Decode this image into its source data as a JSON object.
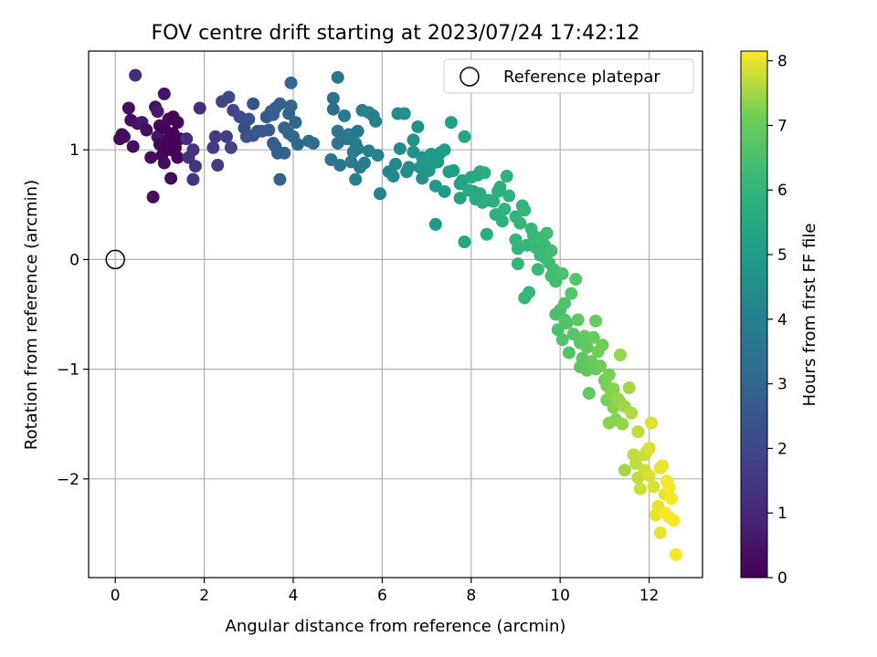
{
  "chart_data": {
    "type": "scatter",
    "title": "FOV centre drift starting at 2023/07/24 17:42:12",
    "xlabel": "Angular distance from reference (arcmin)",
    "ylabel": "Rotation from reference (arcmin)",
    "xlim": [
      -0.6,
      13.2
    ],
    "ylim": [
      -2.9,
      1.9
    ],
    "xticks": [
      0,
      2,
      4,
      6,
      8,
      10,
      12
    ],
    "yticks": [
      -2,
      -1,
      0,
      1
    ],
    "xtick_labels": [
      "0",
      "2",
      "4",
      "6",
      "8",
      "10",
      "12"
    ],
    "ytick_labels": [
      "−2",
      "−1",
      "0",
      "1"
    ],
    "grid": true,
    "legend": {
      "position": "top-right",
      "entries": [
        "Reference platepar"
      ]
    },
    "reference_point": {
      "x": 0,
      "y": 0
    },
    "colorbar": {
      "label": "Hours from first FF file",
      "range": [
        0,
        8.15
      ],
      "ticks": [
        0,
        1,
        2,
        3,
        4,
        5,
        6,
        7,
        8
      ],
      "colormap": "viridis"
    },
    "points": [
      [
        0.1,
        1.1,
        0.15
      ],
      [
        0.15,
        1.14,
        0.2
      ],
      [
        0.2,
        1.12,
        0.25
      ],
      [
        0.3,
        1.38,
        0.4
      ],
      [
        0.35,
        1.27,
        0.3
      ],
      [
        0.4,
        1.03,
        0.35
      ],
      [
        0.45,
        1.68,
        1.1
      ],
      [
        0.5,
        1.24,
        0.5
      ],
      [
        0.6,
        1.25,
        0.6
      ],
      [
        0.7,
        1.18,
        0.35
      ],
      [
        0.8,
        0.93,
        0.3
      ],
      [
        0.85,
        0.57,
        0.3
      ],
      [
        0.9,
        1.39,
        0.4
      ],
      [
        0.95,
        1.35,
        0.7
      ],
      [
        0.95,
        1.12,
        0.6
      ],
      [
        1.0,
        1.22,
        0.2
      ],
      [
        1.0,
        1.05,
        0.15
      ],
      [
        1.05,
        0.95,
        0.2
      ],
      [
        1.1,
        1.51,
        0.5
      ],
      [
        1.1,
        1.2,
        0.1
      ],
      [
        1.1,
        0.88,
        0.3
      ],
      [
        1.15,
        1.03,
        0.05
      ],
      [
        1.2,
        1.28,
        0.15
      ],
      [
        1.2,
        1.1,
        0.1
      ],
      [
        1.25,
        1.0,
        0.1
      ],
      [
        1.25,
        0.74,
        0.25
      ],
      [
        1.3,
        1.3,
        0.05
      ],
      [
        1.3,
        1.15,
        0.1
      ],
      [
        1.35,
        1.02,
        0.05
      ],
      [
        1.4,
        0.93,
        0.05
      ],
      [
        1.4,
        1.25,
        0.05
      ],
      [
        1.45,
        1.1,
        0.1
      ],
      [
        1.6,
        1.1,
        1.2
      ],
      [
        1.65,
        0.93,
        1.3
      ],
      [
        1.75,
        0.73,
        1.4
      ],
      [
        1.75,
        1.0,
        1.3
      ],
      [
        1.8,
        0.85,
        1.4
      ],
      [
        1.9,
        1.38,
        1.2
      ],
      [
        2.2,
        1.02,
        1.7
      ],
      [
        2.25,
        1.12,
        1.6
      ],
      [
        2.3,
        0.86,
        1.7
      ],
      [
        2.4,
        1.44,
        1.9
      ],
      [
        2.5,
        1.12,
        1.8
      ],
      [
        2.55,
        1.48,
        2.0
      ],
      [
        2.6,
        1.02,
        1.9
      ],
      [
        2.65,
        1.36,
        2.0
      ],
      [
        2.8,
        1.3,
        2.1
      ],
      [
        2.9,
        1.2,
        2.2
      ],
      [
        2.95,
        1.12,
        2.3
      ],
      [
        3.0,
        1.28,
        2.3
      ],
      [
        3.1,
        1.13,
        2.4
      ],
      [
        3.1,
        1.42,
        2.4
      ],
      [
        3.2,
        1.17,
        2.5
      ],
      [
        3.3,
        1.17,
        2.5
      ],
      [
        3.4,
        1.3,
        2.6
      ],
      [
        3.45,
        1.18,
        2.6
      ],
      [
        3.5,
        1.35,
        2.7
      ],
      [
        3.55,
        1.06,
        2.7
      ],
      [
        3.55,
        1.32,
        2.7
      ],
      [
        3.6,
        1.03,
        2.7
      ],
      [
        3.6,
        1.38,
        2.8
      ],
      [
        3.65,
        0.97,
        2.8
      ],
      [
        3.7,
        0.73,
        2.9
      ],
      [
        3.7,
        1.42,
        2.9
      ],
      [
        3.8,
        0.97,
        2.9
      ],
      [
        3.8,
        1.2,
        2.9
      ],
      [
        3.9,
        1.33,
        3.0
      ],
      [
        3.9,
        1.15,
        3.0
      ],
      [
        3.95,
        1.61,
        3.1
      ],
      [
        3.95,
        1.4,
        3.0
      ],
      [
        4.0,
        1.12,
        3.1
      ],
      [
        4.05,
        1.25,
        3.1
      ],
      [
        4.1,
        1.05,
        3.1
      ],
      [
        4.35,
        1.08,
        3.2
      ],
      [
        4.45,
        1.06,
        3.2
      ],
      [
        4.85,
        0.91,
        3.5
      ],
      [
        4.9,
        1.47,
        3.4
      ],
      [
        4.9,
        1.37,
        3.4
      ],
      [
        5.0,
        1.66,
        3.6
      ],
      [
        5.0,
        1.17,
        3.6
      ],
      [
        5.0,
        1.06,
        3.6
      ],
      [
        5.05,
        0.86,
        3.6
      ],
      [
        5.15,
        1.31,
        3.7
      ],
      [
        5.2,
        1.1,
        3.7
      ],
      [
        5.25,
        1.14,
        3.8
      ],
      [
        5.3,
        0.89,
        3.8
      ],
      [
        5.35,
        0.98,
        3.8
      ],
      [
        5.4,
        1.06,
        3.8
      ],
      [
        5.4,
        0.73,
        3.9
      ],
      [
        5.45,
        1.01,
        3.8
      ],
      [
        5.45,
        1.17,
        3.7
      ],
      [
        5.5,
        0.84,
        3.8
      ],
      [
        5.55,
        1.36,
        3.8
      ],
      [
        5.6,
        0.88,
        3.8
      ],
      [
        5.7,
        1.34,
        4.0
      ],
      [
        5.7,
        0.99,
        4.0
      ],
      [
        5.8,
        1.31,
        4.0
      ],
      [
        5.85,
        1.26,
        4.0
      ],
      [
        5.9,
        0.95,
        4.1
      ],
      [
        5.95,
        0.6,
        4.1
      ],
      [
        6.15,
        0.8,
        4.2
      ],
      [
        6.25,
        0.76,
        4.3
      ],
      [
        6.3,
        0.87,
        4.3
      ],
      [
        6.35,
        1.33,
        4.4
      ],
      [
        6.4,
        1.01,
        4.4
      ],
      [
        6.5,
        1.33,
        4.5
      ],
      [
        6.55,
        0.8,
        4.5
      ],
      [
        6.6,
        0.84,
        4.5
      ],
      [
        6.7,
        1.09,
        4.6
      ],
      [
        6.7,
        0.98,
        4.6
      ],
      [
        6.8,
        1.21,
        4.7
      ],
      [
        6.85,
        0.84,
        4.7
      ],
      [
        6.9,
        0.74,
        4.7
      ],
      [
        6.9,
        0.93,
        4.8
      ],
      [
        7.0,
        0.9,
        4.8
      ],
      [
        7.05,
        0.81,
        4.8
      ],
      [
        7.1,
        0.96,
        4.9
      ],
      [
        7.15,
        0.88,
        4.9
      ],
      [
        7.2,
        0.32,
        5.0
      ],
      [
        7.2,
        0.67,
        4.9
      ],
      [
        7.25,
        0.89,
        5.0
      ],
      [
        7.3,
        0.97,
        5.0
      ],
      [
        7.4,
        0.62,
        5.0
      ],
      [
        7.4,
        1.0,
        5.1
      ],
      [
        7.5,
        0.8,
        5.1
      ],
      [
        7.55,
        1.25,
        5.2
      ],
      [
        7.6,
        0.81,
        5.1
      ],
      [
        7.75,
        0.69,
        5.3
      ],
      [
        7.75,
        0.56,
        5.3
      ],
      [
        7.8,
        0.72,
        5.3
      ],
      [
        7.85,
        1.12,
        5.4
      ],
      [
        7.85,
        0.16,
        5.4
      ],
      [
        7.95,
        0.63,
        5.5
      ],
      [
        8.0,
        0.75,
        5.5
      ],
      [
        8.05,
        0.62,
        5.5
      ],
      [
        8.1,
        0.55,
        5.5
      ],
      [
        8.15,
        0.77,
        5.6
      ],
      [
        8.2,
        0.6,
        5.6
      ],
      [
        8.2,
        0.8,
        5.6
      ],
      [
        8.25,
        0.52,
        5.6
      ],
      [
        8.3,
        0.79,
        5.7
      ],
      [
        8.35,
        0.23,
        5.7
      ],
      [
        8.4,
        0.54,
        5.7
      ],
      [
        8.5,
        0.53,
        5.7
      ],
      [
        8.55,
        0.41,
        5.8
      ],
      [
        8.6,
        0.62,
        5.8
      ],
      [
        8.65,
        0.66,
        5.8
      ],
      [
        8.7,
        0.35,
        5.8
      ],
      [
        8.75,
        0.46,
        5.9
      ],
      [
        8.8,
        0.76,
        5.9
      ],
      [
        8.85,
        0.58,
        5.9
      ],
      [
        9.0,
        0.18,
        6.0
      ],
      [
        9.0,
        0.39,
        6.0
      ],
      [
        9.05,
        0.1,
        6.0
      ],
      [
        9.05,
        -0.04,
        6.0
      ],
      [
        9.1,
        0.33,
        6.0
      ],
      [
        9.15,
        0.49,
        6.0
      ],
      [
        9.2,
        0.45,
        6.0
      ],
      [
        9.2,
        -0.35,
        6.1
      ],
      [
        9.25,
        0.13,
        6.1
      ],
      [
        9.3,
        -0.3,
        6.1
      ],
      [
        9.35,
        0.28,
        6.2
      ],
      [
        9.4,
        0.22,
        6.2
      ],
      [
        9.45,
        0.11,
        6.2
      ],
      [
        9.5,
        -0.09,
        6.2
      ],
      [
        9.55,
        0.04,
        6.2
      ],
      [
        9.6,
        0.2,
        6.3
      ],
      [
        9.65,
        0.02,
        6.3
      ],
      [
        9.65,
        0.13,
        6.2
      ],
      [
        9.7,
        0.24,
        6.3
      ],
      [
        9.75,
        -0.03,
        6.3
      ],
      [
        9.8,
        -0.15,
        6.4
      ],
      [
        9.8,
        0.08,
        6.4
      ],
      [
        9.85,
        -0.09,
        6.4
      ],
      [
        9.9,
        -0.2,
        6.4
      ],
      [
        9.9,
        -0.5,
        6.5
      ],
      [
        9.95,
        -0.64,
        6.5
      ],
      [
        10.0,
        -0.46,
        6.5
      ],
      [
        10.05,
        -0.13,
        6.5
      ],
      [
        10.05,
        -0.73,
        6.6
      ],
      [
        10.1,
        -0.4,
        6.6
      ],
      [
        10.1,
        -0.55,
        6.6
      ],
      [
        10.15,
        -0.58,
        6.6
      ],
      [
        10.2,
        -0.85,
        6.7
      ],
      [
        10.25,
        -0.31,
        6.7
      ],
      [
        10.3,
        -0.68,
        6.7
      ],
      [
        10.35,
        -0.18,
        6.7
      ],
      [
        10.4,
        -0.55,
        6.8
      ],
      [
        10.45,
        -0.76,
        6.8
      ],
      [
        10.45,
        -0.98,
        6.8
      ],
      [
        10.5,
        -0.9,
        6.8
      ],
      [
        10.55,
        -0.7,
        6.9
      ],
      [
        10.6,
        -0.8,
        6.9
      ],
      [
        10.6,
        -1.01,
        6.9
      ],
      [
        10.65,
        -1.22,
        6.9
      ],
      [
        10.7,
        -0.93,
        7.0
      ],
      [
        10.75,
        -0.71,
        7.0
      ],
      [
        10.8,
        -0.56,
        7.0
      ],
      [
        10.8,
        -1.0,
        7.0
      ],
      [
        10.85,
        -0.84,
        7.1
      ],
      [
        10.9,
        -0.97,
        7.1
      ],
      [
        10.95,
        -0.78,
        7.1
      ],
      [
        11.0,
        -1.1,
        7.1
      ],
      [
        11.05,
        -1.28,
        7.2
      ],
      [
        11.05,
        -1.15,
        7.2
      ],
      [
        11.1,
        -1.49,
        7.3
      ],
      [
        11.1,
        -1.05,
        7.2
      ],
      [
        11.15,
        -1.22,
        7.3
      ],
      [
        11.2,
        -1.35,
        7.3
      ],
      [
        11.2,
        -1.18,
        7.3
      ],
      [
        11.25,
        -1.46,
        7.3
      ],
      [
        11.3,
        -1.27,
        7.4
      ],
      [
        11.35,
        -1.3,
        7.4
      ],
      [
        11.35,
        -0.87,
        7.4
      ],
      [
        11.4,
        -1.5,
        7.4
      ],
      [
        11.45,
        -1.92,
        7.5
      ],
      [
        11.45,
        -1.34,
        7.5
      ],
      [
        11.55,
        -1.17,
        7.5
      ],
      [
        11.6,
        -1.4,
        7.6
      ],
      [
        11.65,
        -1.78,
        7.7
      ],
      [
        11.7,
        -1.86,
        7.7
      ],
      [
        11.75,
        -1.57,
        7.7
      ],
      [
        11.75,
        -1.99,
        7.7
      ],
      [
        11.8,
        -2.09,
        7.8
      ],
      [
        11.9,
        -1.92,
        7.8
      ],
      [
        11.9,
        -1.78,
        7.8
      ],
      [
        11.95,
        -1.75,
        7.8
      ],
      [
        12.0,
        -1.72,
        7.9
      ],
      [
        12.0,
        -1.97,
        7.9
      ],
      [
        12.05,
        -1.49,
        7.9
      ],
      [
        12.1,
        -2.07,
        7.9
      ],
      [
        12.15,
        -2.33,
        8.0
      ],
      [
        12.2,
        -2.25,
        8.0
      ],
      [
        12.25,
        -2.49,
        8.0
      ],
      [
        12.25,
        -1.9,
        8.0
      ],
      [
        12.3,
        -1.88,
        8.0
      ],
      [
        12.35,
        -2.14,
        8.0
      ],
      [
        12.35,
        -2.31,
        8.1
      ],
      [
        12.4,
        -2.02,
        8.1
      ],
      [
        12.45,
        -2.08,
        8.1
      ],
      [
        12.45,
        -2.35,
        8.1
      ],
      [
        12.5,
        -2.18,
        8.1
      ],
      [
        12.55,
        -2.38,
        8.1
      ],
      [
        12.6,
        -2.69,
        8.1
      ]
    ]
  }
}
